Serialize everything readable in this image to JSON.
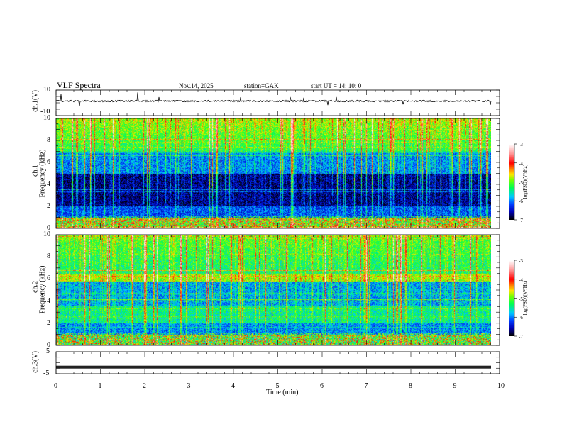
{
  "header": {
    "title": "VLF  Spectra",
    "date": "Nov.14, 2025",
    "station": "station=GAK",
    "start": "start  UT =   14: 10: 0"
  },
  "panels": {
    "ch1": {
      "ylabel": "ch.1(V)",
      "ticks": [
        "10",
        "-10"
      ]
    },
    "spec1": {
      "ylabel_a": "ch.1",
      "ylabel_b": "Frequency  (kHz)",
      "ticks": [
        "10",
        "8",
        "6",
        "4",
        "2",
        "0"
      ]
    },
    "spec2": {
      "ylabel_a": "ch.2",
      "ylabel_b": "Frequency  (kHz)",
      "ticks": [
        "10",
        "8",
        "6",
        "4",
        "2",
        "0"
      ]
    },
    "ch3": {
      "ylabel": "ch.3(V)",
      "ticks": [
        "5",
        "-5"
      ],
      "value": -2
    }
  },
  "colorbar": {
    "label": "log(PSD)(V²/Hz)",
    "ticks": [
      "-3",
      "-4",
      "-5",
      "-6",
      "-7"
    ],
    "range": [
      -7,
      -3
    ]
  },
  "chart_data": {
    "type": "heatmap",
    "title": "VLF  Spectra",
    "xlabel": "Time  (min)",
    "xticks": [
      "0",
      "1",
      "2",
      "3",
      "4",
      "5",
      "6",
      "7",
      "8",
      "9",
      "10"
    ],
    "xlim": [
      0,
      10
    ],
    "data_end_min": 9.8,
    "ylim_freq_khz": [
      0,
      10
    ],
    "ch1_ylim": [
      -10,
      10
    ],
    "ch3_ylim": [
      -5,
      5
    ],
    "colorbar_range": [
      -7,
      -3
    ]
  }
}
